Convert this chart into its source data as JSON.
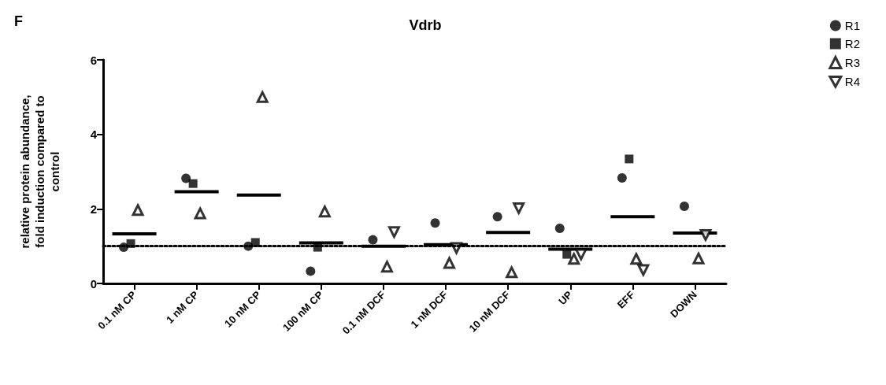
{
  "chart_data": {
    "type": "scatter",
    "title": "Vdrb",
    "ylabel": "relative protein abundance, fold induction compared to control",
    "annotations": [
      "F"
    ],
    "categories": [
      "0.1 nM CP",
      "1 nM CP",
      "10 nM CP",
      "100 nM CP",
      "0.1 nM DCF",
      "1 nM DCF",
      "10 nM DCF",
      "UP",
      "EFF",
      "DOWN"
    ],
    "series": [
      {
        "name": "R1",
        "color": "#000000",
        "marker": "circle",
        "values": [
          0.97,
          2.82,
          1.0,
          0.33,
          1.17,
          1.62,
          1.79,
          1.48,
          2.83,
          2.07
        ]
      },
      {
        "name": "R2",
        "color": "#000000",
        "marker": "square",
        "values": [
          1.07,
          2.68,
          1.1,
          0.97,
          null,
          null,
          null,
          0.78,
          3.34,
          null
        ]
      },
      {
        "name": "R3",
        "color": "#000000",
        "marker": "triangle",
        "values": [
          1.97,
          1.88,
          5.0,
          1.93,
          0.45,
          0.55,
          0.3,
          0.66,
          0.66,
          0.67
        ]
      },
      {
        "name": "R4",
        "color": "#000000",
        "marker": "triangle-down",
        "values": [
          null,
          null,
          null,
          null,
          1.38,
          0.95,
          2.02,
          0.78,
          0.36,
          1.3
        ]
      },
      {
        "type": "box",
        "color": "#000000",
        "boxes": [
          {
            "low": 1.33,
            "q1": 1.33,
            "median": 1.33,
            "q3": 1.33,
            "high": 1.33
          },
          {
            "low": 2.46,
            "q1": 2.46,
            "median": 2.46,
            "q3": 2.46,
            "high": 2.46
          },
          {
            "low": 2.37,
            "q1": 2.37,
            "median": 2.37,
            "q3": 2.37,
            "high": 2.37
          },
          {
            "low": 1.09,
            "q1": 1.09,
            "median": 1.09,
            "q3": 1.09,
            "high": 1.09
          },
          {
            "low": 1.0,
            "q1": 1.0,
            "median": 1.0,
            "q3": 1.0,
            "high": 1.0
          },
          {
            "low": 1.04,
            "q1": 1.04,
            "median": 1.04,
            "q3": 1.04,
            "high": 1.04
          },
          {
            "low": 1.37,
            "q1": 1.37,
            "median": 1.37,
            "q3": 1.37,
            "high": 1.37
          },
          {
            "low": 0.92,
            "q1": 0.92,
            "median": 0.92,
            "q3": 0.92,
            "high": 0.92
          },
          {
            "low": 1.79,
            "q1": 1.79,
            "median": 1.79,
            "q3": 1.79,
            "high": 1.79
          },
          {
            "low": 1.35,
            "q1": 1.35,
            "median": 1.35,
            "q3": 1.35,
            "high": 1.35
          }
        ]
      }
    ],
    "ylim": [
      0,
      6
    ],
    "yticks": [
      0,
      2,
      4,
      6
    ],
    "grid": false,
    "legend": "top right",
    "ref_lines": [
      {
        "axis": "y",
        "value": 1,
        "color": "#000000",
        "line_style": "dotted"
      }
    ]
  }
}
